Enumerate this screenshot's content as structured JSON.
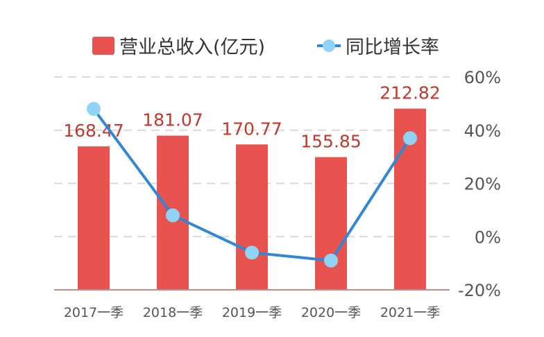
{
  "chart_data": {
    "type": "bar",
    "categories": [
      "2017一季",
      "2018一季",
      "2019一季",
      "2020一季",
      "2021一季"
    ],
    "series": [
      {
        "name": "营业总收入(亿元)",
        "kind": "bar",
        "axis": "left",
        "values": [
          168.47,
          181.07,
          170.77,
          155.85,
          212.82
        ],
        "labels": [
          "168.47",
          "181.07",
          "170.77",
          "155.85",
          "212.82"
        ]
      },
      {
        "name": "同比增长率",
        "kind": "line",
        "axis": "right",
        "values": [
          48,
          8,
          -6,
          -9,
          37
        ]
      }
    ],
    "left_axis": {
      "range": [
        0,
        250
      ],
      "visible": false
    },
    "right_axis": {
      "range": [
        -20,
        60
      ],
      "ticks": [
        60,
        40,
        20,
        0,
        -20
      ],
      "tick_labels": [
        "60%",
        "40%",
        "20%",
        "0%",
        "-20%"
      ]
    },
    "grid": "dashed-horizontal",
    "legend": "top",
    "colors": {
      "bar": "#e8534f",
      "line": "#2f87d6",
      "marker": "#8fd3f7",
      "bar_label": "#c0392b",
      "grid": "#d9d9d9",
      "baseline": "#c48b8b"
    }
  }
}
